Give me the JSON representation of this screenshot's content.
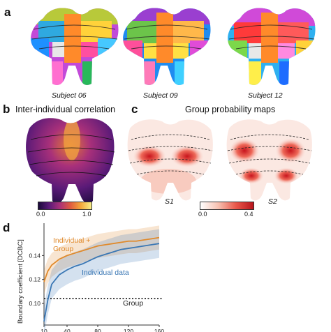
{
  "panels": {
    "a": {
      "letter": "a",
      "subjects": [
        "Subject 06",
        "Subject 09",
        "Subject 12"
      ]
    },
    "b": {
      "letter": "b",
      "title": "Inter-individual correlation",
      "colorbar": {
        "min": "0.0",
        "max": "1.0"
      }
    },
    "c": {
      "letter": "c",
      "title": "Group probability maps",
      "maps": [
        "S1",
        "S2"
      ],
      "colorbar": {
        "min": "0.0",
        "max": "0.4"
      }
    },
    "d": {
      "letter": "d"
    }
  },
  "chart_data": {
    "type": "line",
    "ylabel": "Boundary coefficient [DCBC]",
    "xlabel": "",
    "x": [
      10,
      15,
      20,
      30,
      40,
      50,
      60,
      70,
      80,
      90,
      100,
      110,
      120,
      130,
      140,
      150,
      160
    ],
    "xticks": [
      "10",
      "40",
      "80",
      "120",
      "160"
    ],
    "yticks": [
      "0.10",
      "0.12",
      "0.14"
    ],
    "ylim": [
      0.082,
      0.167
    ],
    "xlim": [
      10,
      160
    ],
    "series": [
      {
        "name": "Individual + Group",
        "color": "#e08a2c",
        "values": [
          0.118,
          0.127,
          0.132,
          0.137,
          0.14,
          0.142,
          0.144,
          0.146,
          0.148,
          0.149,
          0.15,
          0.151,
          0.152,
          0.152,
          0.153,
          0.154,
          0.155
        ]
      },
      {
        "name": "Individual data",
        "color": "#3a77b4",
        "values": [
          0.085,
          0.103,
          0.116,
          0.124,
          0.128,
          0.131,
          0.133,
          0.136,
          0.139,
          0.141,
          0.143,
          0.145,
          0.146,
          0.147,
          0.148,
          0.149,
          0.15
        ]
      }
    ],
    "reference": {
      "name": "Group",
      "value": 0.104
    },
    "annotations": [
      "Individual +",
      "Group",
      "Individual data",
      "Group"
    ]
  }
}
